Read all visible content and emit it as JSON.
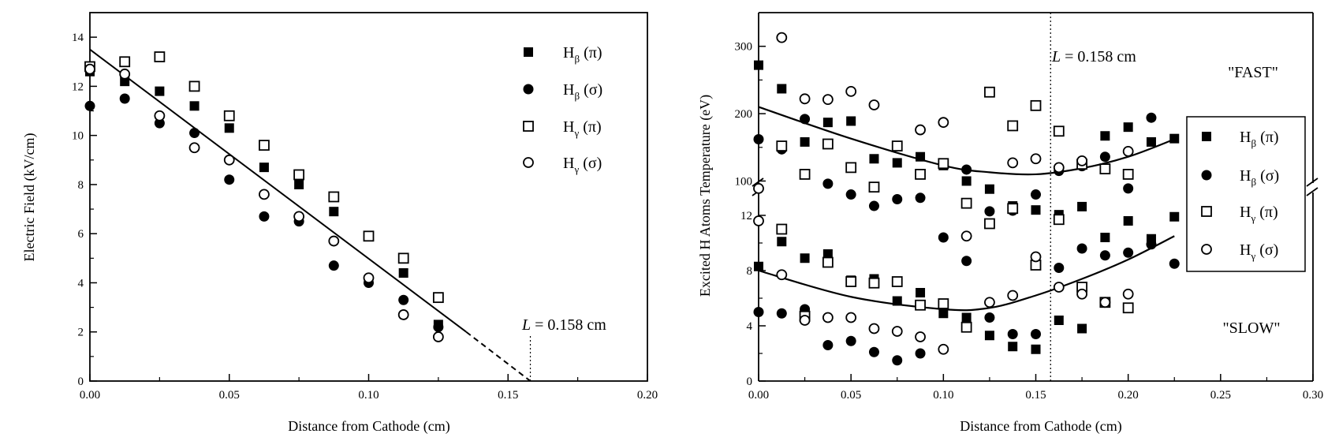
{
  "chart_data": [
    {
      "type": "scatter",
      "xlabel": "Distance from Cathode (cm)",
      "ylabel": "Electric Field (kV/cm)",
      "xlim": [
        0,
        0.2
      ],
      "ylim": [
        0,
        15
      ],
      "xticks": [
        "0.00",
        "0.05",
        "0.10",
        "0.15",
        "0.20"
      ],
      "yticks": [
        "0",
        "2",
        "4",
        "6",
        "8",
        "10",
        "12",
        "14"
      ],
      "legend_placement": "top-right",
      "annotation": {
        "text": "L = 0.158 cm",
        "letter": "L",
        "rest": " = 0.158 cm",
        "x": 0.158
      },
      "fit_line": {
        "solid": [
          [
            0,
            13.5
          ],
          [
            0.135,
            2.0
          ]
        ],
        "dashed": [
          [
            0.135,
            2.0
          ],
          [
            0.158,
            0
          ]
        ]
      },
      "series": [
        {
          "name": "Hβ (π)",
          "base": "H",
          "sub": "β",
          "suffix": " (π)",
          "marker": "filled-square",
          "x": [
            0.0,
            0.0125,
            0.025,
            0.0375,
            0.05,
            0.0625,
            0.075,
            0.0875,
            0.1,
            0.1125,
            0.125
          ],
          "y": [
            12.6,
            12.2,
            11.8,
            11.2,
            10.3,
            8.7,
            8.0,
            6.9,
            5.9,
            4.4,
            2.3
          ]
        },
        {
          "name": "Hβ (σ)",
          "base": "H",
          "sub": "β",
          "suffix": " (σ)",
          "marker": "filled-circle",
          "x": [
            0.0,
            0.0125,
            0.025,
            0.0375,
            0.05,
            0.0625,
            0.075,
            0.0875,
            0.1,
            0.1125,
            0.125
          ],
          "y": [
            11.2,
            11.5,
            10.5,
            10.1,
            8.2,
            6.7,
            6.5,
            4.7,
            4.0,
            3.3,
            2.2
          ]
        },
        {
          "name": "Hγ (π)",
          "base": "H",
          "sub": "γ",
          "suffix": " (π)",
          "marker": "open-square",
          "x": [
            0.0,
            0.0125,
            0.025,
            0.0375,
            0.05,
            0.0625,
            0.075,
            0.0875,
            0.1,
            0.1125,
            0.125
          ],
          "y": [
            12.8,
            13.0,
            13.2,
            12.0,
            10.8,
            9.6,
            8.4,
            7.5,
            5.9,
            5.0,
            3.4
          ]
        },
        {
          "name": "Hγ (σ)",
          "base": "H",
          "sub": "γ",
          "suffix": " (σ)",
          "marker": "open-circle",
          "x": [
            0.0,
            0.0125,
            0.025,
            0.0375,
            0.05,
            0.0625,
            0.075,
            0.0875,
            0.1,
            0.1125,
            0.125
          ],
          "y": [
            12.7,
            12.5,
            10.8,
            9.5,
            9.0,
            7.6,
            6.7,
            5.7,
            4.2,
            2.7,
            1.8
          ]
        }
      ]
    },
    {
      "type": "scatter",
      "xlabel": "Distance from Cathode (cm)",
      "ylabel": "Excited H Atoms Temperature (eV)",
      "xlim": [
        0,
        0.3
      ],
      "xticks": [
        "0.00",
        "0.05",
        "0.10",
        "0.15",
        "0.20",
        "0.25",
        "0.30"
      ],
      "broken_axis": {
        "upper": {
          "range": [
            90,
            350
          ],
          "ticks": [
            "100",
            "200",
            "300"
          ],
          "label": "\"FAST\""
        },
        "lower": {
          "range": [
            0,
            14
          ],
          "ticks": [
            "0",
            "4",
            "8",
            "12"
          ],
          "label": "\"SLOW\""
        }
      },
      "legend_placement": "right",
      "annotation": {
        "text": "L = 0.158 cm",
        "letter": "L",
        "rest": " = 0.158 cm",
        "x": 0.158
      },
      "fit_fast": [
        [
          0,
          210
        ],
        [
          0.05,
          163
        ],
        [
          0.1,
          123
        ],
        [
          0.125,
          113
        ],
        [
          0.15,
          110
        ],
        [
          0.175,
          119
        ],
        [
          0.2,
          136
        ],
        [
          0.225,
          162
        ]
      ],
      "fit_slow": [
        [
          0,
          8.0
        ],
        [
          0.05,
          6.1
        ],
        [
          0.1,
          5.2
        ],
        [
          0.125,
          5.3
        ],
        [
          0.15,
          6.2
        ],
        [
          0.175,
          7.4
        ],
        [
          0.2,
          8.8
        ],
        [
          0.225,
          10.5
        ]
      ],
      "series": [
        {
          "name": "Hβ (π)",
          "base": "H",
          "sub": "β",
          "suffix": " (π)",
          "marker": "filled-square",
          "fast_x": [
            0.0,
            0.0125,
            0.025,
            0.0375,
            0.05,
            0.0625,
            0.075,
            0.0875,
            0.1,
            0.1125,
            0.125,
            0.1375,
            0.15,
            0.1625,
            0.175,
            0.1875,
            0.2,
            0.2125,
            0.225
          ],
          "fast_y": [
            272,
            237,
            158,
            187,
            189,
            133,
            127,
            136,
            123,
            100,
            88,
            63,
            57,
            50,
            62,
            167,
            180,
            158,
            163
          ],
          "slow_x": [
            0.0,
            0.0125,
            0.025,
            0.0375,
            0.05,
            0.0625,
            0.075,
            0.0875,
            0.1,
            0.1125,
            0.125,
            0.1375,
            0.15,
            0.1625,
            0.175,
            0.1875,
            0.2,
            0.2125,
            0.225
          ],
          "slow_y": [
            8.3,
            10.1,
            8.9,
            9.2,
            7.3,
            7.4,
            5.8,
            6.4,
            4.9,
            4.6,
            3.3,
            2.5,
            2.3,
            4.4,
            3.8,
            10.4,
            11.6,
            10.3,
            11.9
          ]
        },
        {
          "name": "Hβ (σ)",
          "base": "H",
          "sub": "β",
          "suffix": " (σ)",
          "marker": "filled-circle",
          "fast_x": [
            0.0,
            0.0125,
            0.025,
            0.0375,
            0.05,
            0.0625,
            0.075,
            0.0875,
            0.1125,
            0.125,
            0.1375,
            0.15,
            0.1625,
            0.175,
            0.1875,
            0.2,
            0.2125
          ],
          "fast_y": [
            162,
            147,
            192,
            96,
            80,
            63,
            73,
            75,
            117,
            55,
            56,
            80,
            115,
            122,
            136,
            89,
            194
          ],
          "slow_x": [
            0.0,
            0.0125,
            0.025,
            0.0375,
            0.05,
            0.0625,
            0.075,
            0.0875,
            0.1,
            0.1125,
            0.125,
            0.1375,
            0.15,
            0.1625,
            0.175,
            0.1875,
            0.2,
            0.2125,
            0.225
          ],
          "slow_y": [
            5.0,
            4.9,
            5.2,
            2.6,
            2.9,
            2.1,
            1.5,
            2.0,
            10.4,
            8.7,
            4.6,
            3.4,
            3.4,
            8.2,
            9.6,
            9.1,
            9.3,
            9.9,
            8.5
          ]
        },
        {
          "name": "Hγ (π)",
          "base": "H",
          "sub": "γ",
          "suffix": " (π)",
          "marker": "open-square",
          "fast_x": [
            0.0125,
            0.025,
            0.0375,
            0.05,
            0.0625,
            0.075,
            0.0875,
            0.1,
            0.1125,
            0.125,
            0.1375,
            0.15,
            0.1625,
            0.175,
            0.1875,
            0.2
          ],
          "fast_y": [
            152,
            110,
            155,
            120,
            91,
            152,
            110,
            126,
            67,
            232,
            182,
            212,
            174,
            125,
            118,
            110
          ],
          "slow_x": [
            0.0125,
            0.025,
            0.0375,
            0.05,
            0.0625,
            0.075,
            0.0875,
            0.1,
            0.1125,
            0.125,
            0.1375,
            0.15,
            0.1625,
            0.175,
            0.1875,
            0.2
          ],
          "slow_y": [
            11.0,
            4.7,
            8.6,
            7.2,
            7.1,
            7.2,
            5.5,
            5.6,
            3.9,
            11.4,
            12.5,
            8.4,
            11.7,
            6.8,
            5.7,
            5.3
          ]
        },
        {
          "name": "Hγ (σ)",
          "base": "H",
          "sub": "γ",
          "suffix": " (σ)",
          "marker": "open-circle",
          "fast_x": [
            0.0,
            0.0125,
            0.025,
            0.0375,
            0.05,
            0.0625,
            0.0875,
            0.1,
            0.1375,
            0.15,
            0.1625,
            0.175,
            0.2
          ],
          "fast_y": [
            89,
            313,
            222,
            221,
            233,
            213,
            176,
            187,
            127,
            133,
            120,
            130,
            144
          ],
          "slow_x": [
            0.0,
            0.0125,
            0.025,
            0.0375,
            0.05,
            0.0625,
            0.075,
            0.0875,
            0.1,
            0.1125,
            0.125,
            0.1375,
            0.15,
            0.1625,
            0.175,
            0.1875,
            0.2
          ],
          "slow_y": [
            11.6,
            7.7,
            4.4,
            4.6,
            4.6,
            3.8,
            3.6,
            3.2,
            2.3,
            10.5,
            5.7,
            6.2,
            9.0,
            6.8,
            6.3,
            5.7,
            6.3
          ]
        }
      ]
    }
  ]
}
